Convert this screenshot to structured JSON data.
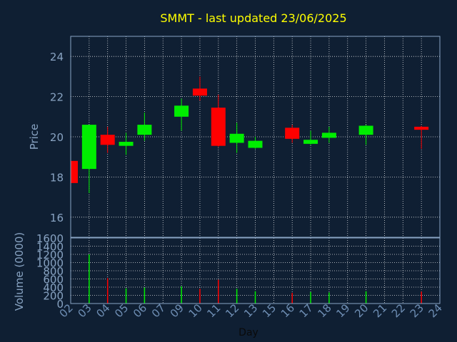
{
  "chart_data": [
    {
      "type": "candlestick",
      "title": "SMMT - last updated 23/06/2025",
      "ylabel": "Price",
      "ylim": [
        15,
        25
      ],
      "y_ticks": [
        16,
        18,
        20,
        22,
        24
      ],
      "grid": true,
      "categories": [
        "02",
        "03",
        "04",
        "05",
        "06",
        "07",
        "09",
        "10",
        "11",
        "12",
        "13",
        "15",
        "16",
        "17",
        "18",
        "19",
        "20",
        "21",
        "22",
        "23",
        "24"
      ],
      "candles": [
        {
          "day": "02",
          "open": 18.8,
          "high": 18.8,
          "low": 17.7,
          "close": 17.7
        },
        {
          "day": "03",
          "open": 18.4,
          "high": 20.6,
          "low": 17.2,
          "close": 20.6
        },
        {
          "day": "04",
          "open": 20.1,
          "high": 20.5,
          "low": 19.2,
          "close": 19.6
        },
        {
          "day": "05",
          "open": 19.55,
          "high": 20.2,
          "low": 19.1,
          "close": 19.75
        },
        {
          "day": "06",
          "open": 20.1,
          "high": 21.2,
          "low": 19.8,
          "close": 20.6
        },
        {
          "day": "09",
          "open": 21.0,
          "high": 21.9,
          "low": 20.3,
          "close": 21.55
        },
        {
          "day": "10",
          "open": 22.4,
          "high": 23.0,
          "low": 21.8,
          "close": 22.05
        },
        {
          "day": "11",
          "open": 21.45,
          "high": 22.1,
          "low": 19.5,
          "close": 19.55
        },
        {
          "day": "12",
          "open": 19.7,
          "high": 20.7,
          "low": 19.2,
          "close": 20.15
        },
        {
          "day": "13",
          "open": 19.45,
          "high": 20.0,
          "low": 19.4,
          "close": 19.8
        },
        {
          "day": "16",
          "open": 20.45,
          "high": 20.6,
          "low": 19.7,
          "close": 19.9
        },
        {
          "day": "17",
          "open": 19.65,
          "high": 20.3,
          "low": 19.6,
          "close": 19.85
        },
        {
          "day": "18",
          "open": 19.95,
          "high": 20.5,
          "low": 19.7,
          "close": 20.2
        },
        {
          "day": "20",
          "open": 20.1,
          "high": 20.6,
          "low": 19.6,
          "close": 20.55
        },
        {
          "day": "23",
          "open": 20.5,
          "high": 20.55,
          "low": 19.4,
          "close": 20.35
        }
      ]
    },
    {
      "type": "bar",
      "ylabel": "Volume (0000)",
      "xlabel": "Day",
      "ylim": [
        0,
        1600
      ],
      "y_ticks": [
        0,
        200,
        400,
        600,
        800,
        1000,
        1200,
        1400,
        1600
      ],
      "grid": true,
      "categories": [
        "02",
        "03",
        "04",
        "05",
        "06",
        "07",
        "09",
        "10",
        "11",
        "12",
        "13",
        "15",
        "16",
        "17",
        "18",
        "19",
        "20",
        "21",
        "22",
        "23",
        "24"
      ],
      "bars": [
        {
          "day": "03",
          "value": 1200,
          "direction": "up"
        },
        {
          "day": "04",
          "value": 620,
          "direction": "down"
        },
        {
          "day": "05",
          "value": 370,
          "direction": "up"
        },
        {
          "day": "06",
          "value": 390,
          "direction": "up"
        },
        {
          "day": "09",
          "value": 420,
          "direction": "up"
        },
        {
          "day": "10",
          "value": 360,
          "direction": "down"
        },
        {
          "day": "11",
          "value": 580,
          "direction": "down"
        },
        {
          "day": "12",
          "value": 360,
          "direction": "up"
        },
        {
          "day": "13",
          "value": 300,
          "direction": "up"
        },
        {
          "day": "16",
          "value": 260,
          "direction": "down"
        },
        {
          "day": "17",
          "value": 280,
          "direction": "up"
        },
        {
          "day": "18",
          "value": 270,
          "direction": "up"
        },
        {
          "day": "20",
          "value": 300,
          "direction": "up"
        },
        {
          "day": "23",
          "value": 290,
          "direction": "down"
        }
      ]
    }
  ],
  "colors": {
    "background": "#0f1f33",
    "title": "#ffff00",
    "axis_text": "#88a3c2",
    "x_tick_text": "#6f8fb5",
    "xlabel": "#0a0a0a",
    "up": "#00ee00",
    "down": "#ff0000",
    "grid": "#ffffff"
  }
}
